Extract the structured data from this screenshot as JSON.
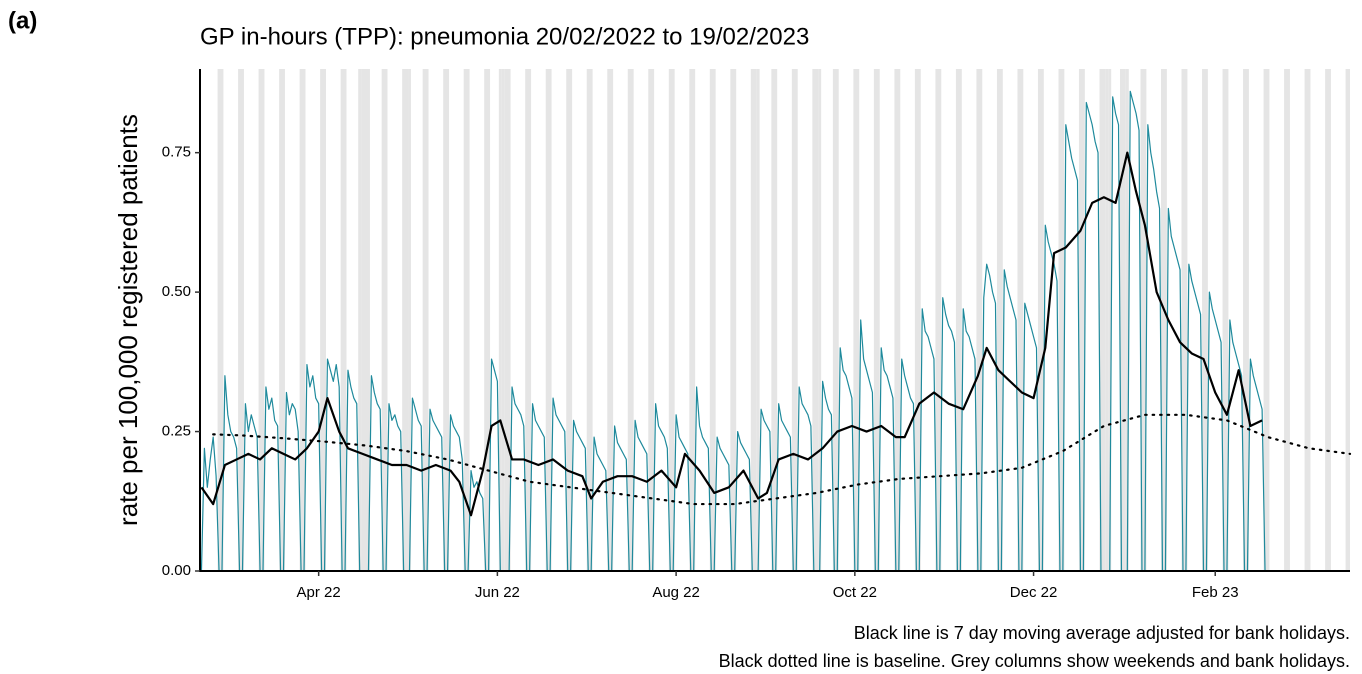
{
  "chart_data": {
    "type": "line",
    "panel_label": "(a)",
    "title": "GP in-hours (TPP): pneumonia 20/02/2022 to 19/02/2023",
    "y_label": "rate per 100,000 registered patients",
    "notes": [
      "Black line is 7 day moving average adjusted for bank holidays.",
      "Black dotted line is baseline. Grey columns show weekends and bank holidays."
    ],
    "xlim": [
      -0.5,
      392
    ],
    "xticks": [
      {
        "value": 40,
        "label": "Apr 22"
      },
      {
        "value": 101,
        "label": "Jun 22"
      },
      {
        "value": 162,
        "label": "Aug 22"
      },
      {
        "value": 223,
        "label": "Oct 22"
      },
      {
        "value": 284,
        "label": "Dec 22"
      },
      {
        "value": 346,
        "label": "Feb 23"
      }
    ],
    "ylim": [
      0,
      0.9
    ],
    "yticks": [
      {
        "value": 0,
        "label": "0.00"
      },
      {
        "value": 0.25,
        "label": "0.25"
      },
      {
        "value": 0.5,
        "label": "0.50"
      },
      {
        "value": 0.75,
        "label": "0.75"
      }
    ],
    "shade_color": "#e5e5e5",
    "weekends": [
      6,
      13,
      20,
      27,
      34,
      41,
      48,
      55,
      62,
      69,
      76,
      83,
      90,
      97,
      104,
      111,
      118,
      125,
      132,
      139,
      146,
      153,
      160,
      167,
      174,
      181,
      188,
      195,
      202,
      209,
      216,
      223,
      230,
      237,
      244,
      251,
      258,
      265,
      272,
      279,
      286,
      293,
      300,
      307,
      314,
      321,
      328,
      335,
      342,
      349,
      356,
      363,
      370,
      377,
      384,
      391
    ],
    "bank_holidays": [
      54,
      57,
      71,
      102,
      103,
      190,
      211,
      309,
      310,
      316
    ],
    "series": [
      {
        "color": "#1f8a9c",
        "width": 1.2,
        "dash": "solid",
        "x_start": 0,
        "values": [
          0,
          0.22,
          0.15,
          0.2,
          0.24,
          0.17,
          0,
          0,
          0.35,
          0.28,
          0.25,
          0.24,
          0.22,
          0,
          0,
          0.3,
          0.25,
          0.28,
          0.26,
          0.24,
          0,
          0,
          0.33,
          0.29,
          0.31,
          0.27,
          0.26,
          0,
          0,
          0.32,
          0.28,
          0.3,
          0.29,
          0.25,
          0,
          0,
          0.37,
          0.33,
          0.35,
          0.31,
          0.3,
          0,
          0,
          0.38,
          0.36,
          0.34,
          0.37,
          0.33,
          0,
          0,
          0.36,
          0.33,
          0.31,
          0.3,
          0,
          0,
          0,
          0,
          0.35,
          0.32,
          0.3,
          0.29,
          0,
          0,
          0.3,
          0.27,
          0.28,
          0.26,
          0.25,
          0,
          0,
          0,
          0.31,
          0.29,
          0.27,
          0.26,
          0,
          0,
          0.29,
          0.27,
          0.26,
          0.25,
          0.24,
          0,
          0,
          0.28,
          0.26,
          0.25,
          0.24,
          0.2,
          0,
          0,
          0.18,
          0.15,
          0.16,
          0.14,
          0.13,
          0,
          0,
          0.38,
          0.36,
          0.34,
          0,
          0,
          0,
          0,
          0.33,
          0.3,
          0.29,
          0.28,
          0.26,
          0,
          0,
          0.3,
          0.27,
          0.26,
          0.25,
          0.24,
          0,
          0,
          0.31,
          0.28,
          0.27,
          0.26,
          0.25,
          0,
          0,
          0.27,
          0.25,
          0.24,
          0.23,
          0.22,
          0,
          0,
          0.24,
          0.21,
          0.2,
          0.19,
          0.18,
          0,
          0,
          0.26,
          0.23,
          0.22,
          0.21,
          0.2,
          0,
          0,
          0.27,
          0.24,
          0.23,
          0.22,
          0.21,
          0,
          0,
          0.3,
          0.26,
          0.25,
          0.24,
          0.22,
          0,
          0,
          0.28,
          0.24,
          0.23,
          0.22,
          0.21,
          0,
          0,
          0.33,
          0.26,
          0.24,
          0.23,
          0.22,
          0,
          0,
          0.24,
          0.22,
          0.21,
          0.2,
          0.19,
          0,
          0,
          0.25,
          0.23,
          0.22,
          0.21,
          0.2,
          0,
          0,
          0,
          0.29,
          0.27,
          0.26,
          0.25,
          0,
          0,
          0.3,
          0.27,
          0.26,
          0.25,
          0.24,
          0,
          0,
          0.33,
          0.3,
          0.29,
          0.28,
          0.26,
          0,
          0,
          0,
          0.34,
          0.31,
          0.29,
          0.28,
          0,
          0,
          0.4,
          0.36,
          0.35,
          0.33,
          0.31,
          0,
          0,
          0.45,
          0.38,
          0.36,
          0.34,
          0.32,
          0,
          0,
          0.4,
          0.36,
          0.35,
          0.33,
          0.31,
          0,
          0,
          0.38,
          0.35,
          0.33,
          0.31,
          0.3,
          0,
          0,
          0.47,
          0.43,
          0.42,
          0.4,
          0.38,
          0,
          0,
          0.49,
          0.46,
          0.44,
          0.43,
          0.41,
          0,
          0,
          0.47,
          0.43,
          0.42,
          0.4,
          0.38,
          0,
          0,
          0.49,
          0.55,
          0.53,
          0.5,
          0.48,
          0,
          0,
          0.54,
          0.51,
          0.49,
          0.47,
          0.45,
          0,
          0,
          0.48,
          0.46,
          0.44,
          0.42,
          0.4,
          0,
          0,
          0.62,
          0.59,
          0.57,
          0.55,
          0.52,
          0,
          0,
          0.8,
          0.77,
          0.74,
          0.72,
          0.7,
          0,
          0,
          0.84,
          0.82,
          0.8,
          0.77,
          0.75,
          0,
          0,
          0,
          0,
          0.85,
          0.82,
          0.8,
          0,
          0,
          0,
          0.86,
          0.84,
          0.82,
          0.79,
          0,
          0,
          0.8,
          0.75,
          0.72,
          0.68,
          0.65,
          0,
          0,
          0.65,
          0.6,
          0.58,
          0.56,
          0.54,
          0,
          0,
          0.55,
          0.52,
          0.5,
          0.48,
          0.46,
          0,
          0,
          0.5,
          0.47,
          0.45,
          0.43,
          0.41,
          0,
          0,
          0.45,
          0.41,
          0.39,
          0.37,
          0.35,
          0,
          0,
          0.38,
          0.35,
          0.33,
          0.31,
          0.29,
          0
        ]
      },
      {
        "color": "#000000",
        "width": 2.2,
        "dash": "solid",
        "x": [
          0,
          4,
          8,
          12,
          16,
          20,
          24,
          28,
          32,
          36,
          40,
          43,
          47,
          50,
          55,
          60,
          65,
          70,
          75,
          80,
          85,
          88,
          92,
          96,
          99,
          102,
          106,
          110,
          115,
          120,
          125,
          130,
          133,
          137,
          142,
          147,
          152,
          157,
          162,
          165,
          170,
          175,
          180,
          185,
          190,
          193,
          197,
          202,
          207,
          212,
          217,
          222,
          227,
          232,
          237,
          240,
          245,
          250,
          255,
          260,
          265,
          268,
          272,
          276,
          280,
          284,
          288,
          291,
          295,
          300,
          304,
          308,
          312,
          316,
          319,
          322,
          326,
          330,
          334,
          338,
          342,
          346,
          350,
          354,
          358,
          362
        ],
        "values": [
          0.15,
          0.12,
          0.19,
          0.2,
          0.21,
          0.2,
          0.22,
          0.21,
          0.2,
          0.22,
          0.25,
          0.31,
          0.25,
          0.22,
          0.21,
          0.2,
          0.19,
          0.19,
          0.18,
          0.19,
          0.18,
          0.16,
          0.1,
          0.18,
          0.26,
          0.27,
          0.2,
          0.2,
          0.19,
          0.2,
          0.18,
          0.17,
          0.13,
          0.16,
          0.17,
          0.17,
          0.16,
          0.18,
          0.15,
          0.21,
          0.18,
          0.14,
          0.15,
          0.18,
          0.13,
          0.14,
          0.2,
          0.21,
          0.2,
          0.22,
          0.25,
          0.26,
          0.25,
          0.26,
          0.24,
          0.24,
          0.3,
          0.32,
          0.3,
          0.29,
          0.35,
          0.4,
          0.36,
          0.34,
          0.32,
          0.31,
          0.4,
          0.57,
          0.58,
          0.61,
          0.66,
          0.67,
          0.66,
          0.75,
          0.68,
          0.62,
          0.5,
          0.45,
          0.41,
          0.39,
          0.38,
          0.32,
          0.28,
          0.36,
          0.26,
          0.27
        ]
      },
      {
        "color": "#000000",
        "width": 2.2,
        "dash": "dotted",
        "x": [
          4,
          14,
          28,
          42,
          56,
          70,
          84,
          98,
          112,
          126,
          140,
          154,
          168,
          182,
          196,
          210,
          224,
          238,
          252,
          266,
          280,
          294,
          308,
          322,
          336,
          350,
          364,
          378,
          392
        ],
        "values": [
          0.245,
          0.243,
          0.238,
          0.232,
          0.225,
          0.215,
          0.2,
          0.18,
          0.16,
          0.15,
          0.14,
          0.13,
          0.12,
          0.12,
          0.13,
          0.14,
          0.155,
          0.165,
          0.17,
          0.175,
          0.185,
          0.215,
          0.26,
          0.28,
          0.28,
          0.27,
          0.24,
          0.22,
          0.21
        ]
      }
    ]
  }
}
